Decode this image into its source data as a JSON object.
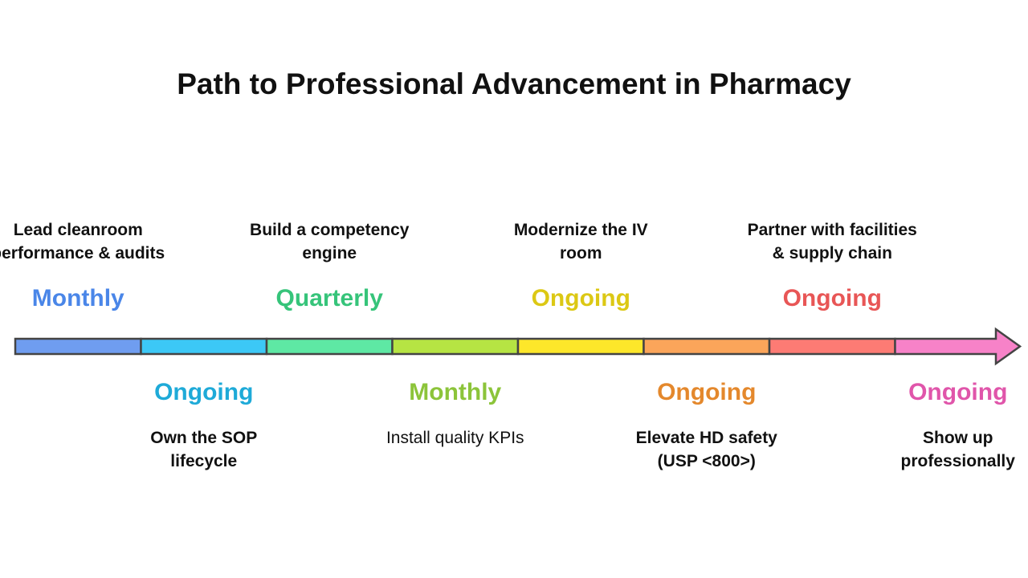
{
  "title": "Path to Professional Advancement in Pharmacy",
  "milestones": [
    {
      "description": "Lead cleanroom performance & audits",
      "frequency": "Monthly",
      "color": "#4a86e8",
      "fill": "#6f9df0",
      "position": "top"
    },
    {
      "description": "Own the SOP lifecycle",
      "frequency": "Ongoing",
      "color": "#1eaad8",
      "fill": "#3cc8f6",
      "position": "bottom"
    },
    {
      "description": "Build a competency engine",
      "frequency": "Quarterly",
      "color": "#36c47a",
      "fill": "#5ee8a4",
      "position": "top"
    },
    {
      "description": "Install quality KPIs",
      "frequency": "Monthly",
      "color": "#8cc43a",
      "fill": "#b6e443",
      "position": "bottom"
    },
    {
      "description": "Modernize the IV room",
      "frequency": "Ongoing",
      "color": "#dcc814",
      "fill": "#fde72a",
      "position": "top"
    },
    {
      "description": "Elevate HD safety (USP <800>)",
      "frequency": "Ongoing",
      "color": "#e4882c",
      "fill": "#fba55a",
      "position": "bottom"
    },
    {
      "description": "Partner with facilities & supply chain",
      "frequency": "Ongoing",
      "color": "#e85656",
      "fill": "#fd7b74",
      "position": "top"
    },
    {
      "description": "Show up professionally",
      "frequency": "Ongoing",
      "color": "#e055aa",
      "fill": "#f782c8",
      "position": "bottom"
    }
  ]
}
